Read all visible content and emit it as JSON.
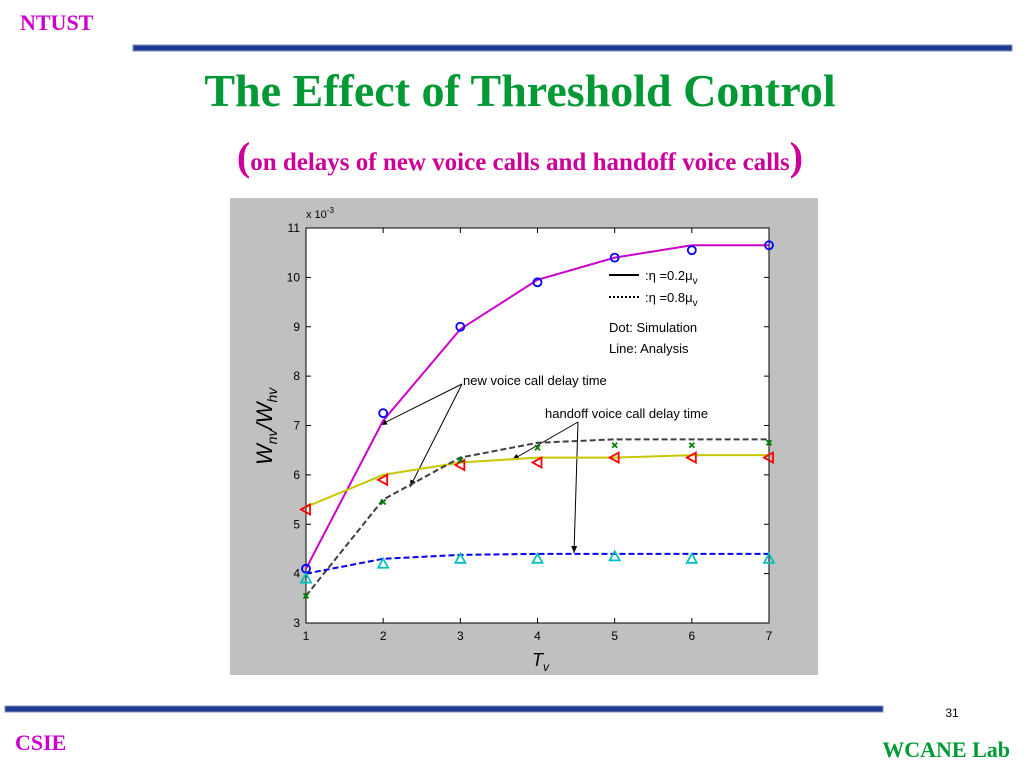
{
  "header": {
    "org": "NTUST",
    "title": "The Effect of Threshold Control",
    "paren_open": "(",
    "subtitle": "on delays of new voice calls  and handoff voice calls",
    "paren_close": ")"
  },
  "footer": {
    "left": "CSIE",
    "right": "WCANE Lab",
    "page": "31"
  },
  "chart_data": {
    "type": "line",
    "x": [
      1,
      2,
      3,
      4,
      5,
      6,
      7
    ],
    "xlim": [
      1,
      7
    ],
    "xticks": [
      1,
      2,
      3,
      4,
      5,
      6,
      7
    ],
    "ylim": [
      3,
      11
    ],
    "yticks": [
      3,
      4,
      5,
      6,
      7,
      8,
      9,
      10,
      11
    ],
    "y_scale": [
      "x 10",
      "-3"
    ],
    "xlabel": [
      "T",
      "v"
    ],
    "ylabel": [
      "W",
      "nv",
      "/W",
      "hv"
    ],
    "legend": [
      {
        "style": "solid",
        "label": ":η =0.2μ",
        "sub": "v"
      },
      {
        "style": "dotted",
        "label": ":η =0.8μ",
        "sub": "v"
      }
    ],
    "notes": [
      "Dot: Simulation",
      "Line: Analysis"
    ],
    "annotations": [
      "new voice call delay time",
      "handoff voice call delay time"
    ],
    "series": [
      {
        "color": "#cc00cc",
        "style": "solid",
        "values": [
          4.1,
          7.1,
          8.95,
          9.95,
          10.4,
          10.65,
          10.65
        ]
      },
      {
        "color": "#0000ff",
        "marker": "circle",
        "values": [
          4.1,
          7.25,
          9.0,
          9.9,
          10.4,
          10.55,
          10.65
        ]
      },
      {
        "color": "#c8c800",
        "style": "solid",
        "values": [
          5.35,
          6.0,
          6.25,
          6.35,
          6.35,
          6.4,
          6.4
        ]
      },
      {
        "color": "#ff0000",
        "marker": "tri-left",
        "values": [
          5.3,
          5.9,
          6.2,
          6.25,
          6.35,
          6.35,
          6.35
        ]
      },
      {
        "color": "#404040",
        "style": "dashed",
        "values": [
          3.55,
          5.5,
          6.35,
          6.65,
          6.72,
          6.72,
          6.72
        ]
      },
      {
        "color": "#008000",
        "marker": "x",
        "values": [
          3.55,
          5.45,
          6.3,
          6.55,
          6.6,
          6.6,
          6.65
        ]
      },
      {
        "color": "#0000ee",
        "style": "dashed",
        "values": [
          4.0,
          4.3,
          4.38,
          4.4,
          4.4,
          4.4,
          4.4
        ]
      },
      {
        "color": "#00c0c0",
        "marker": "tri-up",
        "values": [
          3.9,
          4.2,
          4.3,
          4.3,
          4.35,
          4.3,
          4.3
        ]
      }
    ]
  }
}
